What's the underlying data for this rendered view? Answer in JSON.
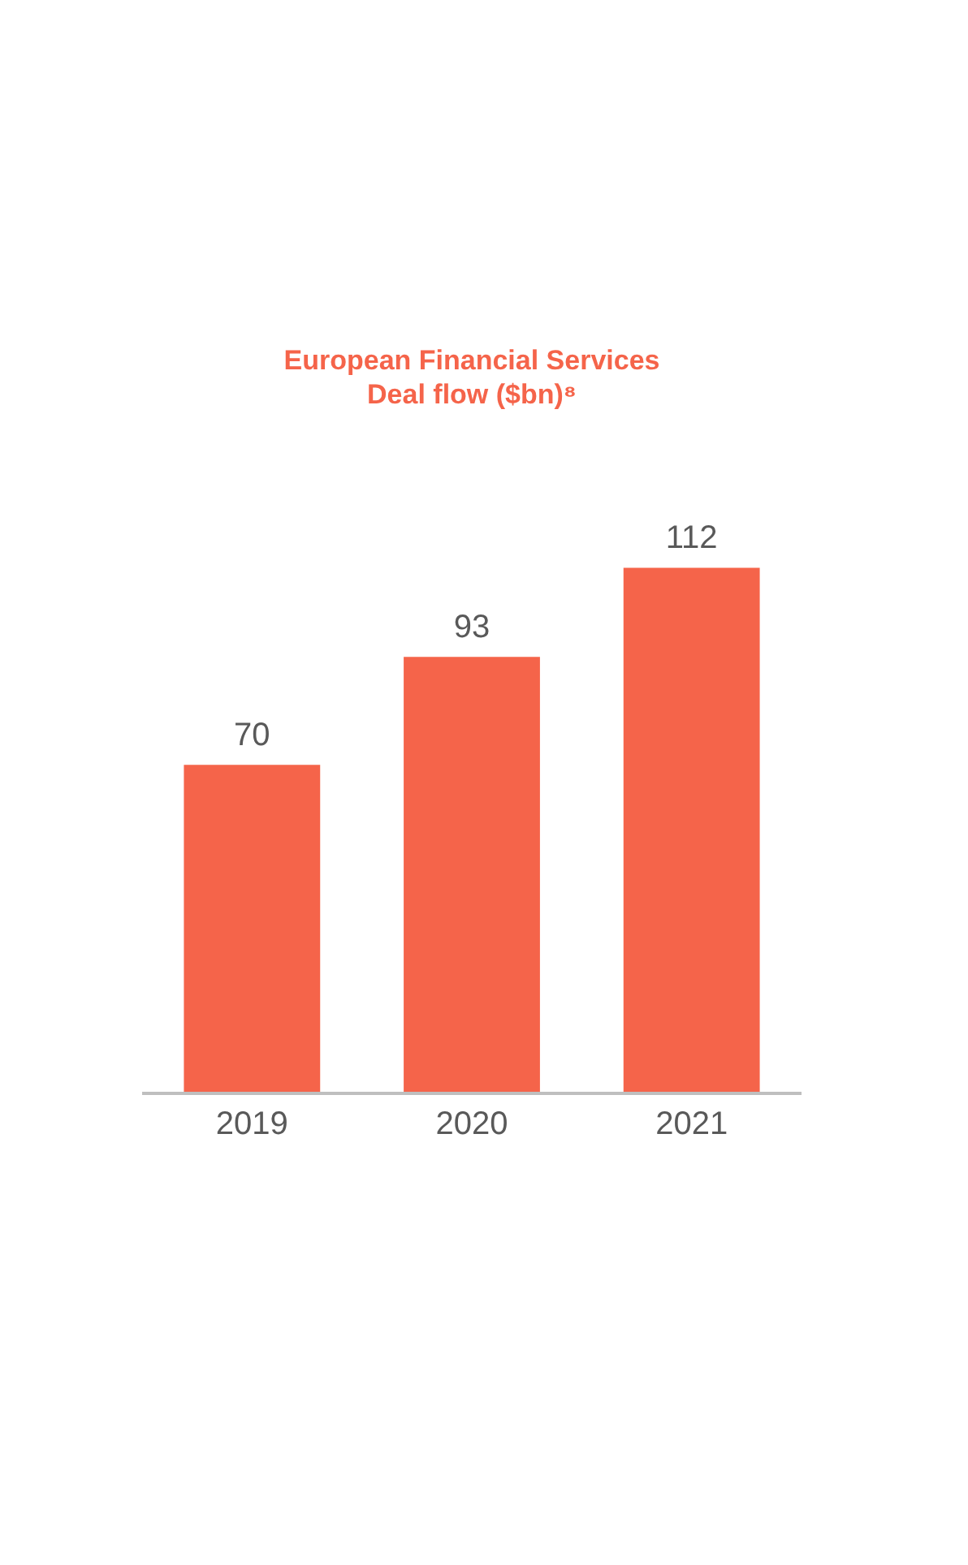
{
  "chart_data": {
    "type": "bar",
    "title": "European Financial Services\nDeal flow ($bn)⁸",
    "categories": [
      "2019",
      "2020",
      "2021"
    ],
    "values": [
      70,
      93,
      112
    ],
    "color": "#f5644a",
    "data_labels": true
  }
}
